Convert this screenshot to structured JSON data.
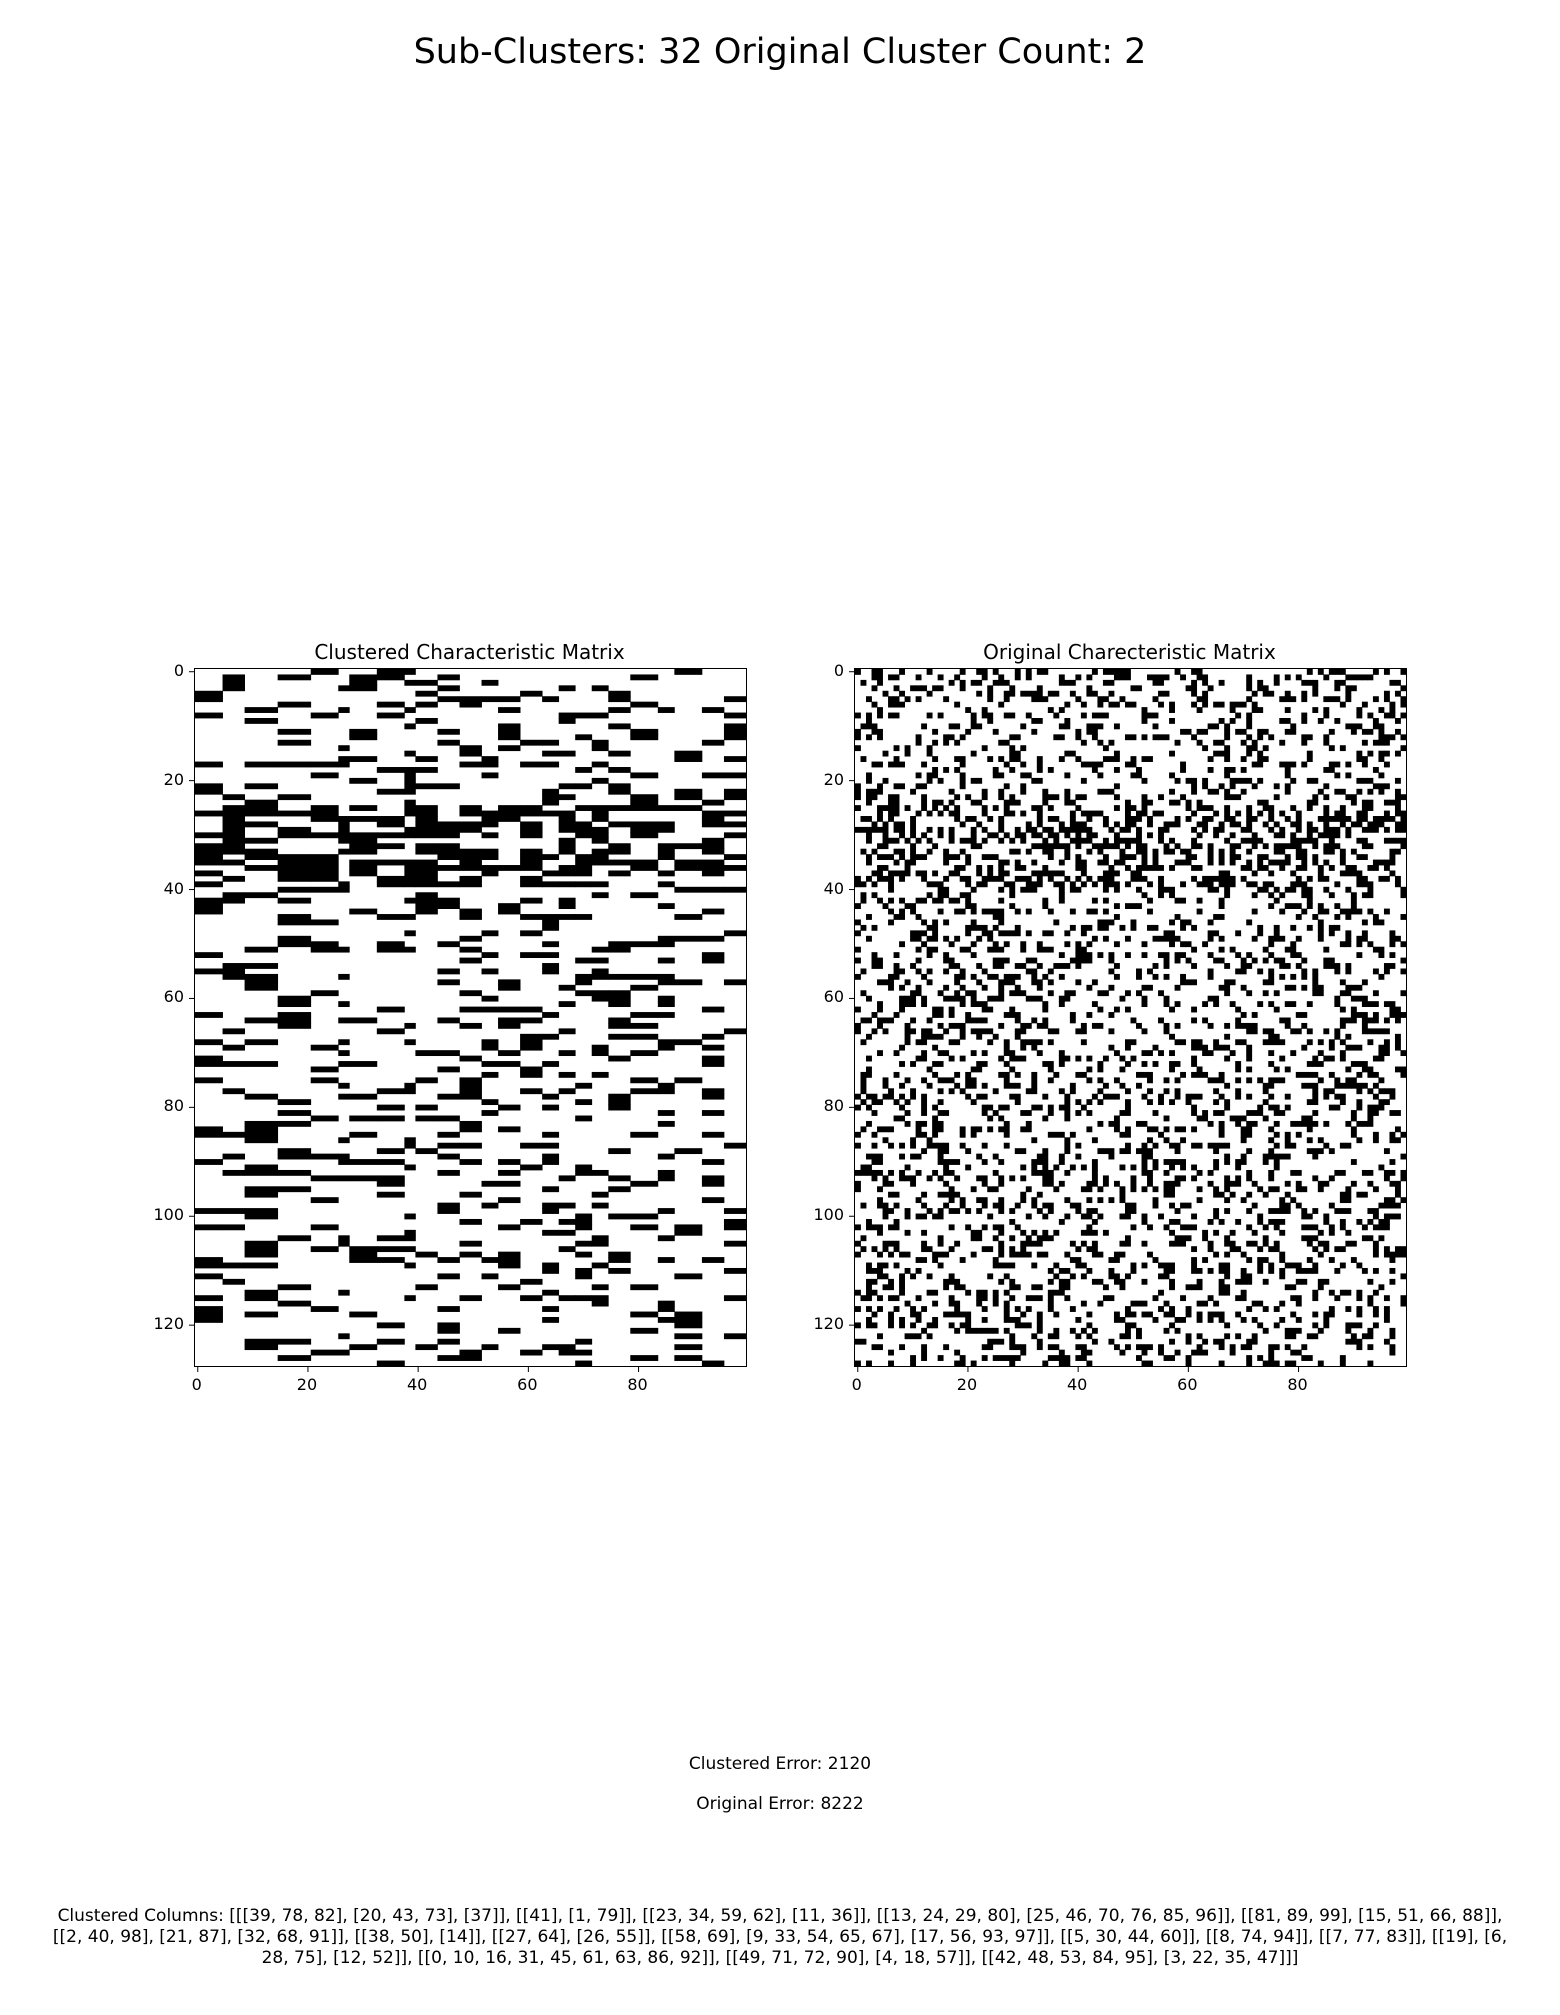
{
  "suptitle": "Sub-Clusters: 32  Original Cluster Count: 2",
  "chart_data": [
    {
      "type": "heatmap",
      "title": "Clustered Characteristic Matrix",
      "rows": 128,
      "cols": 100,
      "colormap": "binary",
      "x_ticks": [
        0,
        20,
        40,
        60,
        80
      ],
      "y_ticks": [
        0,
        20,
        40,
        60,
        80,
        100,
        120
      ],
      "grid": false
    },
    {
      "type": "heatmap",
      "title": "Original Charecteristic Matrix",
      "rows": 128,
      "cols": 100,
      "colormap": "binary",
      "x_ticks": [
        0,
        20,
        40,
        60,
        80
      ],
      "y_ticks": [
        0,
        20,
        40,
        60,
        80,
        100,
        120
      ],
      "grid": false
    }
  ],
  "footer": {
    "clustered_error": "Clustered Error: 2120",
    "original_error": "Original Error: 8222",
    "clustered_columns_line1": "Clustered Columns: [[[39, 78, 82], [20, 43, 73], [37]], [[41], [1, 79]], [[23, 34, 59, 62], [11, 36]], [[13, 24, 29, 80], [25, 46, 70, 76, 85, 96]], [[81, 89, 99], [15, 51, 66, 88]],",
    "clustered_columns_line2": "[[2, 40, 98], [21, 87], [32, 68, 91]], [[38, 50], [14]], [[27, 64], [26, 55]], [[58, 69], [9, 33, 54, 65, 67], [17, 56, 93, 97]], [[5, 30, 44, 60]], [[8, 74, 94]], [[7, 77, 83]], [[19], [6,",
    "clustered_columns_line3": "28, 75], [12, 52]], [[0, 10, 16, 31, 45, 61, 63, 86, 92]], [[49, 71, 72, 90], [4, 18, 57]], [[42, 48, 53, 84, 95], [3, 22, 35, 47]]]"
  }
}
